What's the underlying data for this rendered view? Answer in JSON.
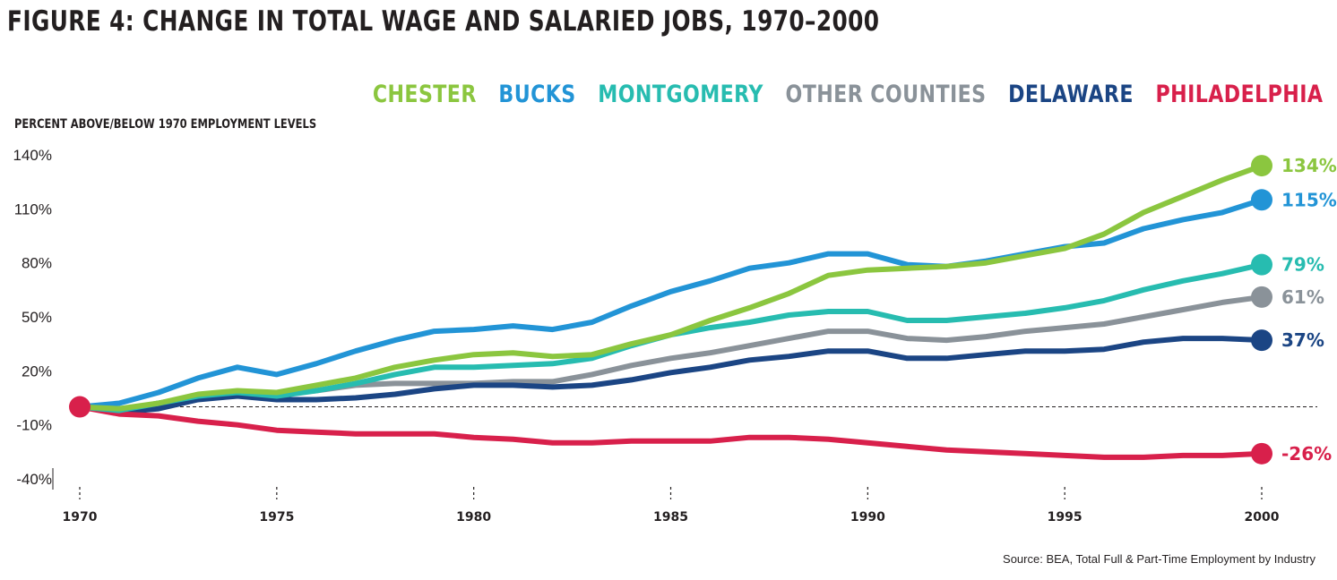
{
  "chart_data": {
    "type": "line",
    "title": "FIGURE 4: CHANGE IN TOTAL WAGE AND SALARIED JOBS, 1970–2000",
    "ylabel": "PERCENT ABOVE/BELOW 1970 EMPLOYMENT LEVELS",
    "xlabel": "",
    "source": "Source: BEA, Total Full & Part-Time Employment by Industry",
    "xlim": [
      1970,
      2000
    ],
    "ylim": [
      -40,
      140
    ],
    "y_ticks": [
      140,
      110,
      80,
      50,
      20,
      -10,
      -40
    ],
    "y_tick_labels": [
      "140%",
      "110%",
      "80%",
      "50%",
      "20%",
      "-10%",
      "-40%"
    ],
    "x_ticks": [
      1970,
      1975,
      1980,
      1985,
      1990,
      1995,
      2000
    ],
    "x_tick_labels": [
      "1970",
      "1975",
      "1980",
      "1985",
      "1990",
      "1995",
      "2000"
    ],
    "legend_position": "top-right",
    "reference_line": 0,
    "x": [
      1970,
      1971,
      1972,
      1973,
      1974,
      1975,
      1976,
      1977,
      1978,
      1979,
      1980,
      1981,
      1982,
      1983,
      1984,
      1985,
      1986,
      1987,
      1988,
      1989,
      1990,
      1991,
      1992,
      1993,
      1994,
      1995,
      1996,
      1997,
      1998,
      1999,
      2000
    ],
    "series": [
      {
        "name": "OTHER COUNTIES",
        "color": "#8a9299",
        "end_label": "61%",
        "values": [
          0,
          -2,
          2,
          5,
          6,
          7,
          9,
          12,
          13,
          13,
          13,
          14,
          14,
          18,
          23,
          27,
          30,
          34,
          38,
          42,
          42,
          38,
          37,
          39,
          42,
          44,
          46,
          50,
          54,
          58,
          61
        ]
      },
      {
        "name": "DELAWARE",
        "color": "#1b4584",
        "end_label": "37%",
        "values": [
          0,
          -3,
          -1,
          4,
          6,
          4,
          4,
          5,
          7,
          10,
          12,
          12,
          11,
          12,
          15,
          19,
          22,
          26,
          28,
          31,
          31,
          27,
          27,
          29,
          31,
          31,
          32,
          36,
          38,
          38,
          37
        ]
      },
      {
        "name": "PHILADELPHIA",
        "color": "#d8204b",
        "end_label": "-26%",
        "values": [
          0,
          -4,
          -5,
          -8,
          -10,
          -13,
          -14,
          -15,
          -15,
          -15,
          -17,
          -18,
          -20,
          -20,
          -19,
          -19,
          -19,
          -17,
          -17,
          -18,
          -20,
          -22,
          -24,
          -25,
          -26,
          -27,
          -28,
          -28,
          -27,
          -27,
          -26
        ]
      },
      {
        "name": "MONTGOMERY",
        "color": "#27bcb0",
        "end_label": "79%",
        "values": [
          0,
          -2,
          2,
          6,
          8,
          6,
          9,
          13,
          18,
          22,
          22,
          23,
          24,
          27,
          34,
          40,
          44,
          47,
          51,
          53,
          53,
          48,
          48,
          50,
          52,
          55,
          59,
          65,
          70,
          74,
          79
        ]
      },
      {
        "name": "BUCKS",
        "color": "#2294d6",
        "end_label": "115%",
        "values": [
          0,
          2,
          8,
          16,
          22,
          18,
          24,
          31,
          37,
          42,
          43,
          45,
          43,
          47,
          56,
          64,
          70,
          77,
          80,
          85,
          85,
          79,
          78,
          81,
          85,
          89,
          91,
          99,
          104,
          108,
          115
        ]
      },
      {
        "name": "CHESTER",
        "color": "#8bc63f",
        "end_label": "134%",
        "values": [
          0,
          -1,
          2,
          7,
          9,
          8,
          12,
          16,
          22,
          26,
          29,
          30,
          28,
          29,
          35,
          40,
          48,
          55,
          63,
          73,
          76,
          77,
          78,
          80,
          84,
          88,
          96,
          108,
          117,
          126,
          134
        ]
      }
    ],
    "legend_order": [
      "CHESTER",
      "BUCKS",
      "MONTGOMERY",
      "OTHER COUNTIES",
      "DELAWARE",
      "PHILADELPHIA"
    ]
  }
}
